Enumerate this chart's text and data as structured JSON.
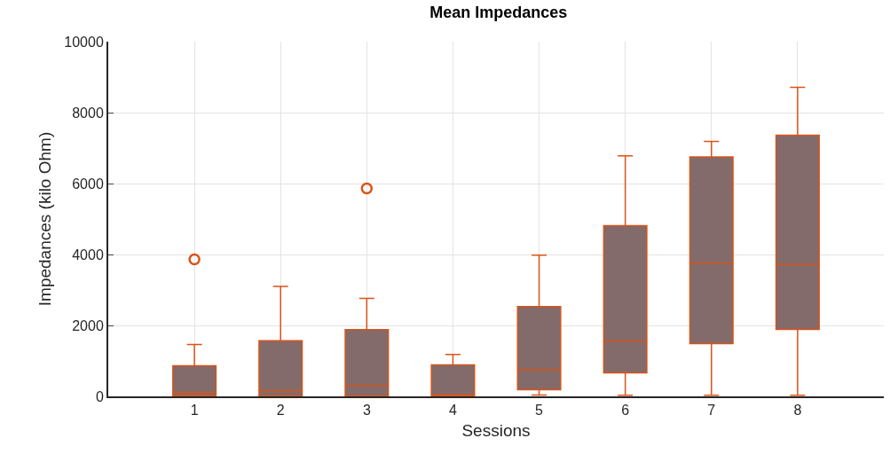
{
  "chart_data": {
    "type": "box",
    "title": "Mean Impedances",
    "xlabel": "Sessions",
    "ylabel": "Impedances (kilo Ohm)",
    "categories": [
      "1",
      "2",
      "3",
      "4",
      "5",
      "6",
      "7",
      "8"
    ],
    "boxes": [
      {
        "low": 0,
        "q1": 20,
        "median": 115,
        "q3": 860,
        "high": 1460,
        "outliers": [
          3860
        ]
      },
      {
        "low": 0,
        "q1": 10,
        "median": 165,
        "q3": 1570,
        "high": 3100
      },
      {
        "low": 0,
        "q1": 10,
        "median": 300,
        "q3": 1880,
        "high": 2760,
        "outliers": [
          5860
        ]
      },
      {
        "low": 0,
        "q1": 0,
        "median": 40,
        "q3": 890,
        "high": 1180
      },
      {
        "low": 40,
        "q1": 190,
        "median": 750,
        "q3": 2530,
        "high": 3980
      },
      {
        "low": 30,
        "q1": 660,
        "median": 1560,
        "q3": 4810,
        "high": 6780
      },
      {
        "low": 30,
        "q1": 1490,
        "median": 3750,
        "q3": 6750,
        "high": 7190
      },
      {
        "low": 30,
        "q1": 1890,
        "median": 3720,
        "q3": 7360,
        "high": 8710
      }
    ],
    "color": "#826b6a",
    "ylim": [
      0,
      10000
    ],
    "yticks": [
      0,
      2000,
      4000,
      6000,
      8000,
      10000
    ],
    "grid": true
  }
}
